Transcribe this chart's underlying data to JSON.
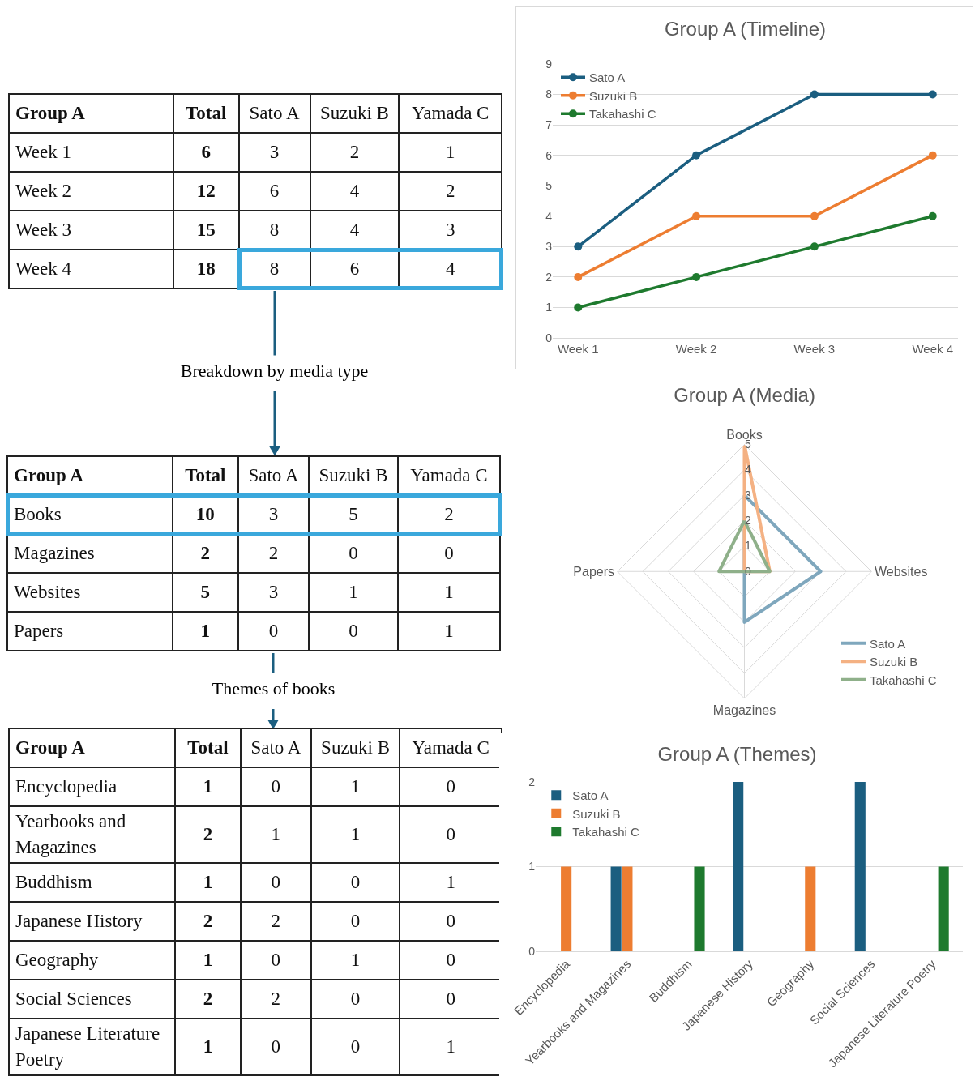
{
  "chart_data": [
    {
      "type": "heatmap",
      "title": "Group A",
      "categories": [
        "Total",
        "Sato A",
        "Suzuki B",
        "Yamada C"
      ],
      "y_categories": [
        "Week 1",
        "Week 2",
        "Week 3",
        "Week 4"
      ],
      "cells": [
        [
          6,
          3,
          2,
          1
        ],
        [
          12,
          6,
          4,
          2
        ],
        [
          15,
          8,
          4,
          3
        ],
        [
          18,
          8,
          6,
          4
        ]
      ],
      "data_labels": true,
      "annotations": [
        "Breakdown by media type"
      ]
    },
    {
      "type": "line",
      "title": "Group A (Timeline)",
      "categories": [
        "Week 1",
        "Week 2",
        "Week 3",
        "Week 4"
      ],
      "series": [
        {
          "name": "Sato A",
          "color": "#1b5e80",
          "values": [
            3,
            6,
            8,
            8
          ]
        },
        {
          "name": "Suzuki B",
          "color": "#ed7d31",
          "values": [
            2,
            4,
            4,
            6
          ]
        },
        {
          "name": "Takahashi C",
          "color": "#1e7a2e",
          "values": [
            1,
            2,
            3,
            4
          ]
        }
      ],
      "ylim": [
        0,
        9
      ],
      "yticks": [
        0,
        1,
        2,
        3,
        4,
        5,
        6,
        7,
        8,
        9
      ],
      "grid": "y",
      "legend": "top left",
      "marker": "circle"
    },
    {
      "type": "heatmap",
      "title": "Group A",
      "categories": [
        "Total",
        "Sato A",
        "Suzuki B",
        "Yamada C"
      ],
      "y_categories": [
        "Books",
        "Magazines",
        "Websites",
        "Papers"
      ],
      "cells": [
        [
          10,
          3,
          5,
          2
        ],
        [
          2,
          2,
          0,
          0
        ],
        [
          5,
          3,
          1,
          1
        ],
        [
          1,
          0,
          0,
          1
        ]
      ],
      "data_labels": true,
      "annotations": [
        "Themes of books"
      ]
    },
    {
      "type": "radar",
      "title": "Group A (Media)",
      "categories": [
        "Books",
        "Websites",
        "Magazines",
        "Papers"
      ],
      "series": [
        {
          "name": "Sato A",
          "color": "#7fa7bd",
          "values": [
            3,
            3,
            2,
            0
          ]
        },
        {
          "name": "Suzuki B",
          "color": "#f4b183",
          "values": [
            5,
            1,
            0,
            0
          ]
        },
        {
          "name": "Takahashi C",
          "color": "#8fb08a",
          "values": [
            2,
            1,
            0,
            1
          ]
        }
      ],
      "ylim": [
        0,
        5
      ],
      "yticks": [
        0,
        1,
        2,
        3,
        4,
        5
      ],
      "legend": "bottom right"
    },
    {
      "type": "heatmap",
      "title": "Group A",
      "categories": [
        "Total",
        "Sato A",
        "Suzuki B",
        "Yamada C"
      ],
      "y_categories": [
        "Encyclopedia",
        "Yearbooks and Magazines",
        "Buddhism",
        "Japanese History",
        "Geography",
        "Social Sciences",
        "Japanese Literature Poetry"
      ],
      "cells": [
        [
          1,
          0,
          1,
          0
        ],
        [
          2,
          1,
          1,
          0
        ],
        [
          1,
          0,
          0,
          1
        ],
        [
          2,
          2,
          0,
          0
        ],
        [
          1,
          0,
          1,
          0
        ],
        [
          2,
          2,
          0,
          0
        ],
        [
          1,
          0,
          0,
          1
        ]
      ],
      "data_labels": true
    },
    {
      "type": "bar",
      "title": "Group A (Themes)",
      "categories": [
        "Encyclopedia",
        "Yearbooks and Magazines",
        "Buddhism",
        "Japanese History",
        "Geography",
        "Social Sciences",
        "Japanese Literature Poetry"
      ],
      "series": [
        {
          "name": "Sato A",
          "color": "#1b5e80",
          "values": [
            0,
            1,
            0,
            2,
            0,
            2,
            0
          ]
        },
        {
          "name": "Suzuki B",
          "color": "#ed7d31",
          "values": [
            1,
            1,
            0,
            0,
            1,
            0,
            0
          ]
        },
        {
          "name": "Takahashi C",
          "color": "#1e7a2e",
          "values": [
            0,
            0,
            1,
            0,
            0,
            0,
            1
          ]
        }
      ],
      "ylim": [
        0,
        2
      ],
      "yticks": [
        0,
        1,
        2
      ],
      "grid": "y",
      "legend": "top left"
    }
  ]
}
